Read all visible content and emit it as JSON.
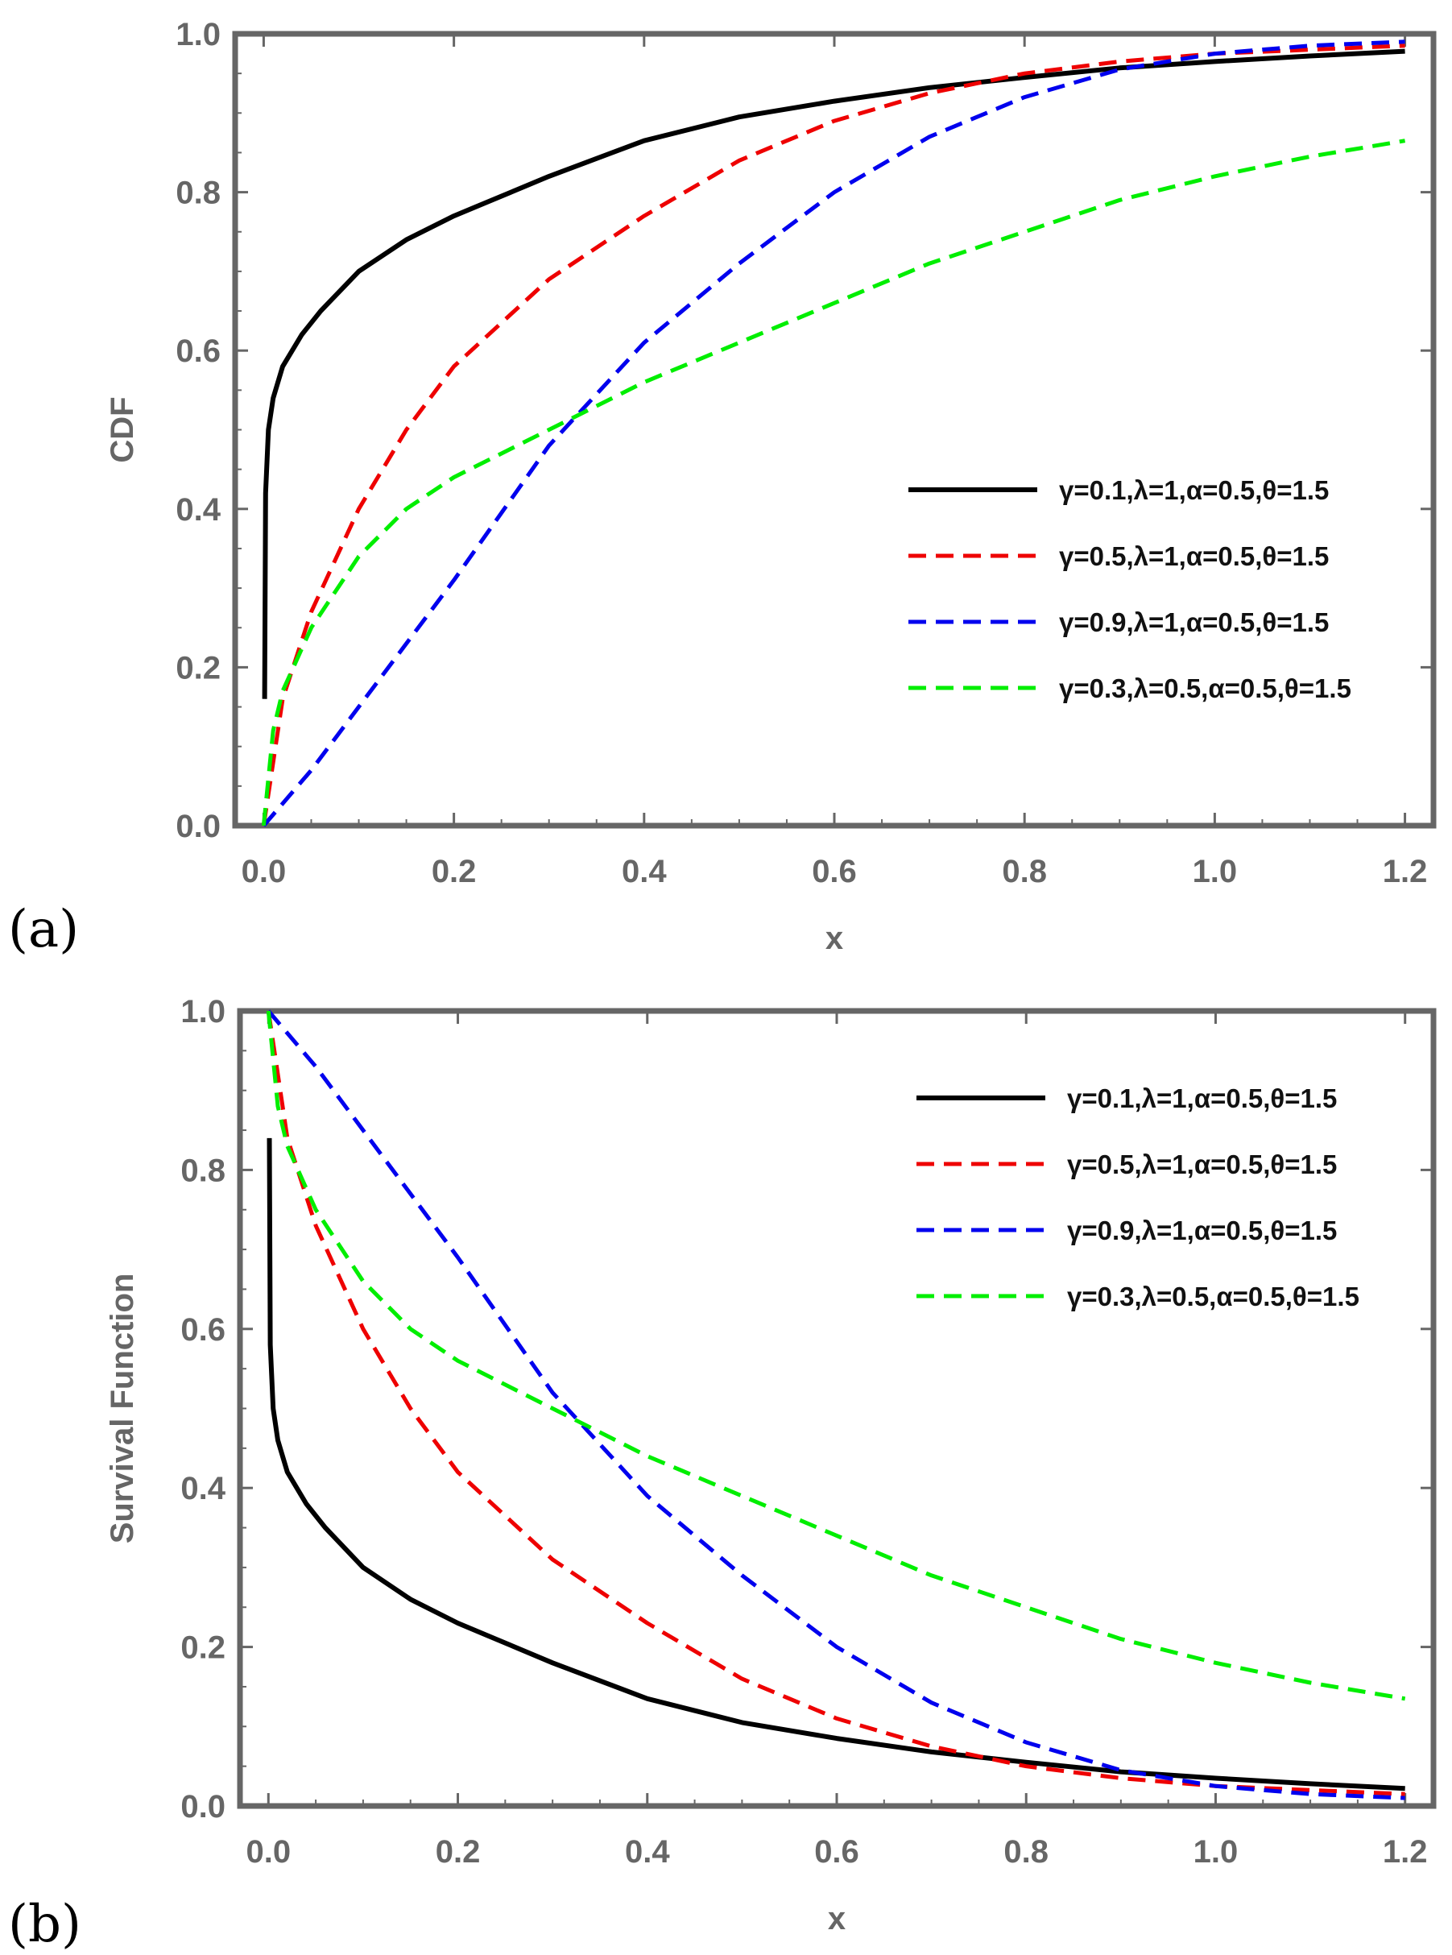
{
  "figure": {
    "panel_a_label": "(a)",
    "panel_b_label": "(b)"
  },
  "colors": {
    "frame": "#666666",
    "series": [
      "#000000",
      "#ee0000",
      "#0000ee",
      "#00ee00"
    ]
  },
  "chart_data": [
    {
      "type": "line",
      "panel": "a",
      "title": "",
      "xlabel": "x",
      "ylabel": "CDF",
      "xlim": [
        -0.03,
        1.23
      ],
      "ylim": [
        0.0,
        1.0
      ],
      "xticks": [
        "0.0",
        "0.2",
        "0.4",
        "0.6",
        "0.8",
        "1.0",
        "1.2"
      ],
      "yticks": [
        "0.0",
        "0.2",
        "0.4",
        "0.6",
        "0.8",
        "1.0"
      ],
      "legend_position": "right-middle",
      "series": [
        {
          "name": "γ=0.1,λ=1,α=0.5,θ=1.5",
          "style": "solid",
          "x": [
            0.001,
            0.002,
            0.005,
            0.01,
            0.02,
            0.04,
            0.06,
            0.1,
            0.15,
            0.2,
            0.3,
            0.4,
            0.5,
            0.6,
            0.7,
            0.8,
            0.9,
            1.0,
            1.1,
            1.2
          ],
          "y": [
            0.16,
            0.42,
            0.5,
            0.54,
            0.58,
            0.62,
            0.65,
            0.7,
            0.74,
            0.77,
            0.82,
            0.865,
            0.895,
            0.915,
            0.932,
            0.945,
            0.957,
            0.965,
            0.972,
            0.978
          ]
        },
        {
          "name": "γ=0.5,λ=1,α=0.5,θ=1.5",
          "style": "dashed",
          "x": [
            0.0,
            0.02,
            0.05,
            0.1,
            0.15,
            0.2,
            0.3,
            0.4,
            0.5,
            0.6,
            0.7,
            0.8,
            0.9,
            1.0,
            1.1,
            1.2
          ],
          "y": [
            0.0,
            0.16,
            0.27,
            0.4,
            0.5,
            0.58,
            0.69,
            0.77,
            0.84,
            0.89,
            0.925,
            0.95,
            0.965,
            0.975,
            0.98,
            0.985
          ]
        },
        {
          "name": "γ=0.9,λ=1,α=0.5,θ=1.5",
          "style": "dashed",
          "x": [
            0.0,
            0.05,
            0.1,
            0.15,
            0.2,
            0.3,
            0.4,
            0.5,
            0.6,
            0.7,
            0.8,
            0.9,
            1.0,
            1.1,
            1.2
          ],
          "y": [
            0.0,
            0.07,
            0.15,
            0.23,
            0.31,
            0.48,
            0.61,
            0.71,
            0.8,
            0.87,
            0.92,
            0.955,
            0.975,
            0.985,
            0.99
          ]
        },
        {
          "name": "γ=0.3,λ=0.5,α=0.5,θ=1.5",
          "style": "dashed",
          "x": [
            0.0,
            0.01,
            0.02,
            0.05,
            0.1,
            0.15,
            0.2,
            0.3,
            0.4,
            0.5,
            0.6,
            0.7,
            0.8,
            0.9,
            1.0,
            1.1,
            1.2
          ],
          "y": [
            0.0,
            0.12,
            0.17,
            0.25,
            0.34,
            0.4,
            0.44,
            0.5,
            0.56,
            0.61,
            0.66,
            0.71,
            0.75,
            0.79,
            0.82,
            0.845,
            0.865
          ]
        }
      ]
    },
    {
      "type": "line",
      "panel": "b",
      "title": "",
      "xlabel": "x",
      "ylabel": "Survival Function",
      "xlim": [
        -0.03,
        1.23
      ],
      "ylim": [
        0.0,
        1.0
      ],
      "xticks": [
        "0.0",
        "0.2",
        "0.4",
        "0.6",
        "0.8",
        "1.0",
        "1.2"
      ],
      "yticks": [
        "0.0",
        "0.2",
        "0.4",
        "0.6",
        "0.8",
        "1.0"
      ],
      "legend_position": "top-right",
      "series": [
        {
          "name": "γ=0.1,λ=1,α=0.5,θ=1.5",
          "style": "solid",
          "x": [
            0.001,
            0.002,
            0.005,
            0.01,
            0.02,
            0.04,
            0.06,
            0.1,
            0.15,
            0.2,
            0.3,
            0.4,
            0.5,
            0.6,
            0.7,
            0.8,
            0.9,
            1.0,
            1.1,
            1.2
          ],
          "y": [
            0.84,
            0.58,
            0.5,
            0.46,
            0.42,
            0.38,
            0.35,
            0.3,
            0.26,
            0.23,
            0.18,
            0.135,
            0.105,
            0.085,
            0.068,
            0.055,
            0.043,
            0.035,
            0.028,
            0.022
          ]
        },
        {
          "name": "γ=0.5,λ=1,α=0.5,θ=1.5",
          "style": "dashed",
          "x": [
            0.0,
            0.02,
            0.05,
            0.1,
            0.15,
            0.2,
            0.3,
            0.4,
            0.5,
            0.6,
            0.7,
            0.8,
            0.9,
            1.0,
            1.1,
            1.2
          ],
          "y": [
            1.0,
            0.84,
            0.73,
            0.6,
            0.5,
            0.42,
            0.31,
            0.23,
            0.16,
            0.11,
            0.075,
            0.05,
            0.035,
            0.025,
            0.02,
            0.015
          ]
        },
        {
          "name": "γ=0.9,λ=1,α=0.5,θ=1.5",
          "style": "dashed",
          "x": [
            0.0,
            0.05,
            0.1,
            0.15,
            0.2,
            0.3,
            0.4,
            0.5,
            0.6,
            0.7,
            0.8,
            0.9,
            1.0,
            1.1,
            1.2
          ],
          "y": [
            1.0,
            0.93,
            0.85,
            0.77,
            0.69,
            0.52,
            0.39,
            0.29,
            0.2,
            0.13,
            0.08,
            0.045,
            0.025,
            0.015,
            0.01
          ]
        },
        {
          "name": "γ=0.3,λ=0.5,α=0.5,θ=1.5",
          "style": "dashed",
          "x": [
            0.0,
            0.01,
            0.02,
            0.05,
            0.1,
            0.15,
            0.2,
            0.3,
            0.4,
            0.5,
            0.6,
            0.7,
            0.8,
            0.9,
            1.0,
            1.1,
            1.2
          ],
          "y": [
            1.0,
            0.88,
            0.83,
            0.75,
            0.66,
            0.6,
            0.56,
            0.5,
            0.44,
            0.39,
            0.34,
            0.29,
            0.25,
            0.21,
            0.18,
            0.155,
            0.135
          ]
        }
      ]
    }
  ]
}
